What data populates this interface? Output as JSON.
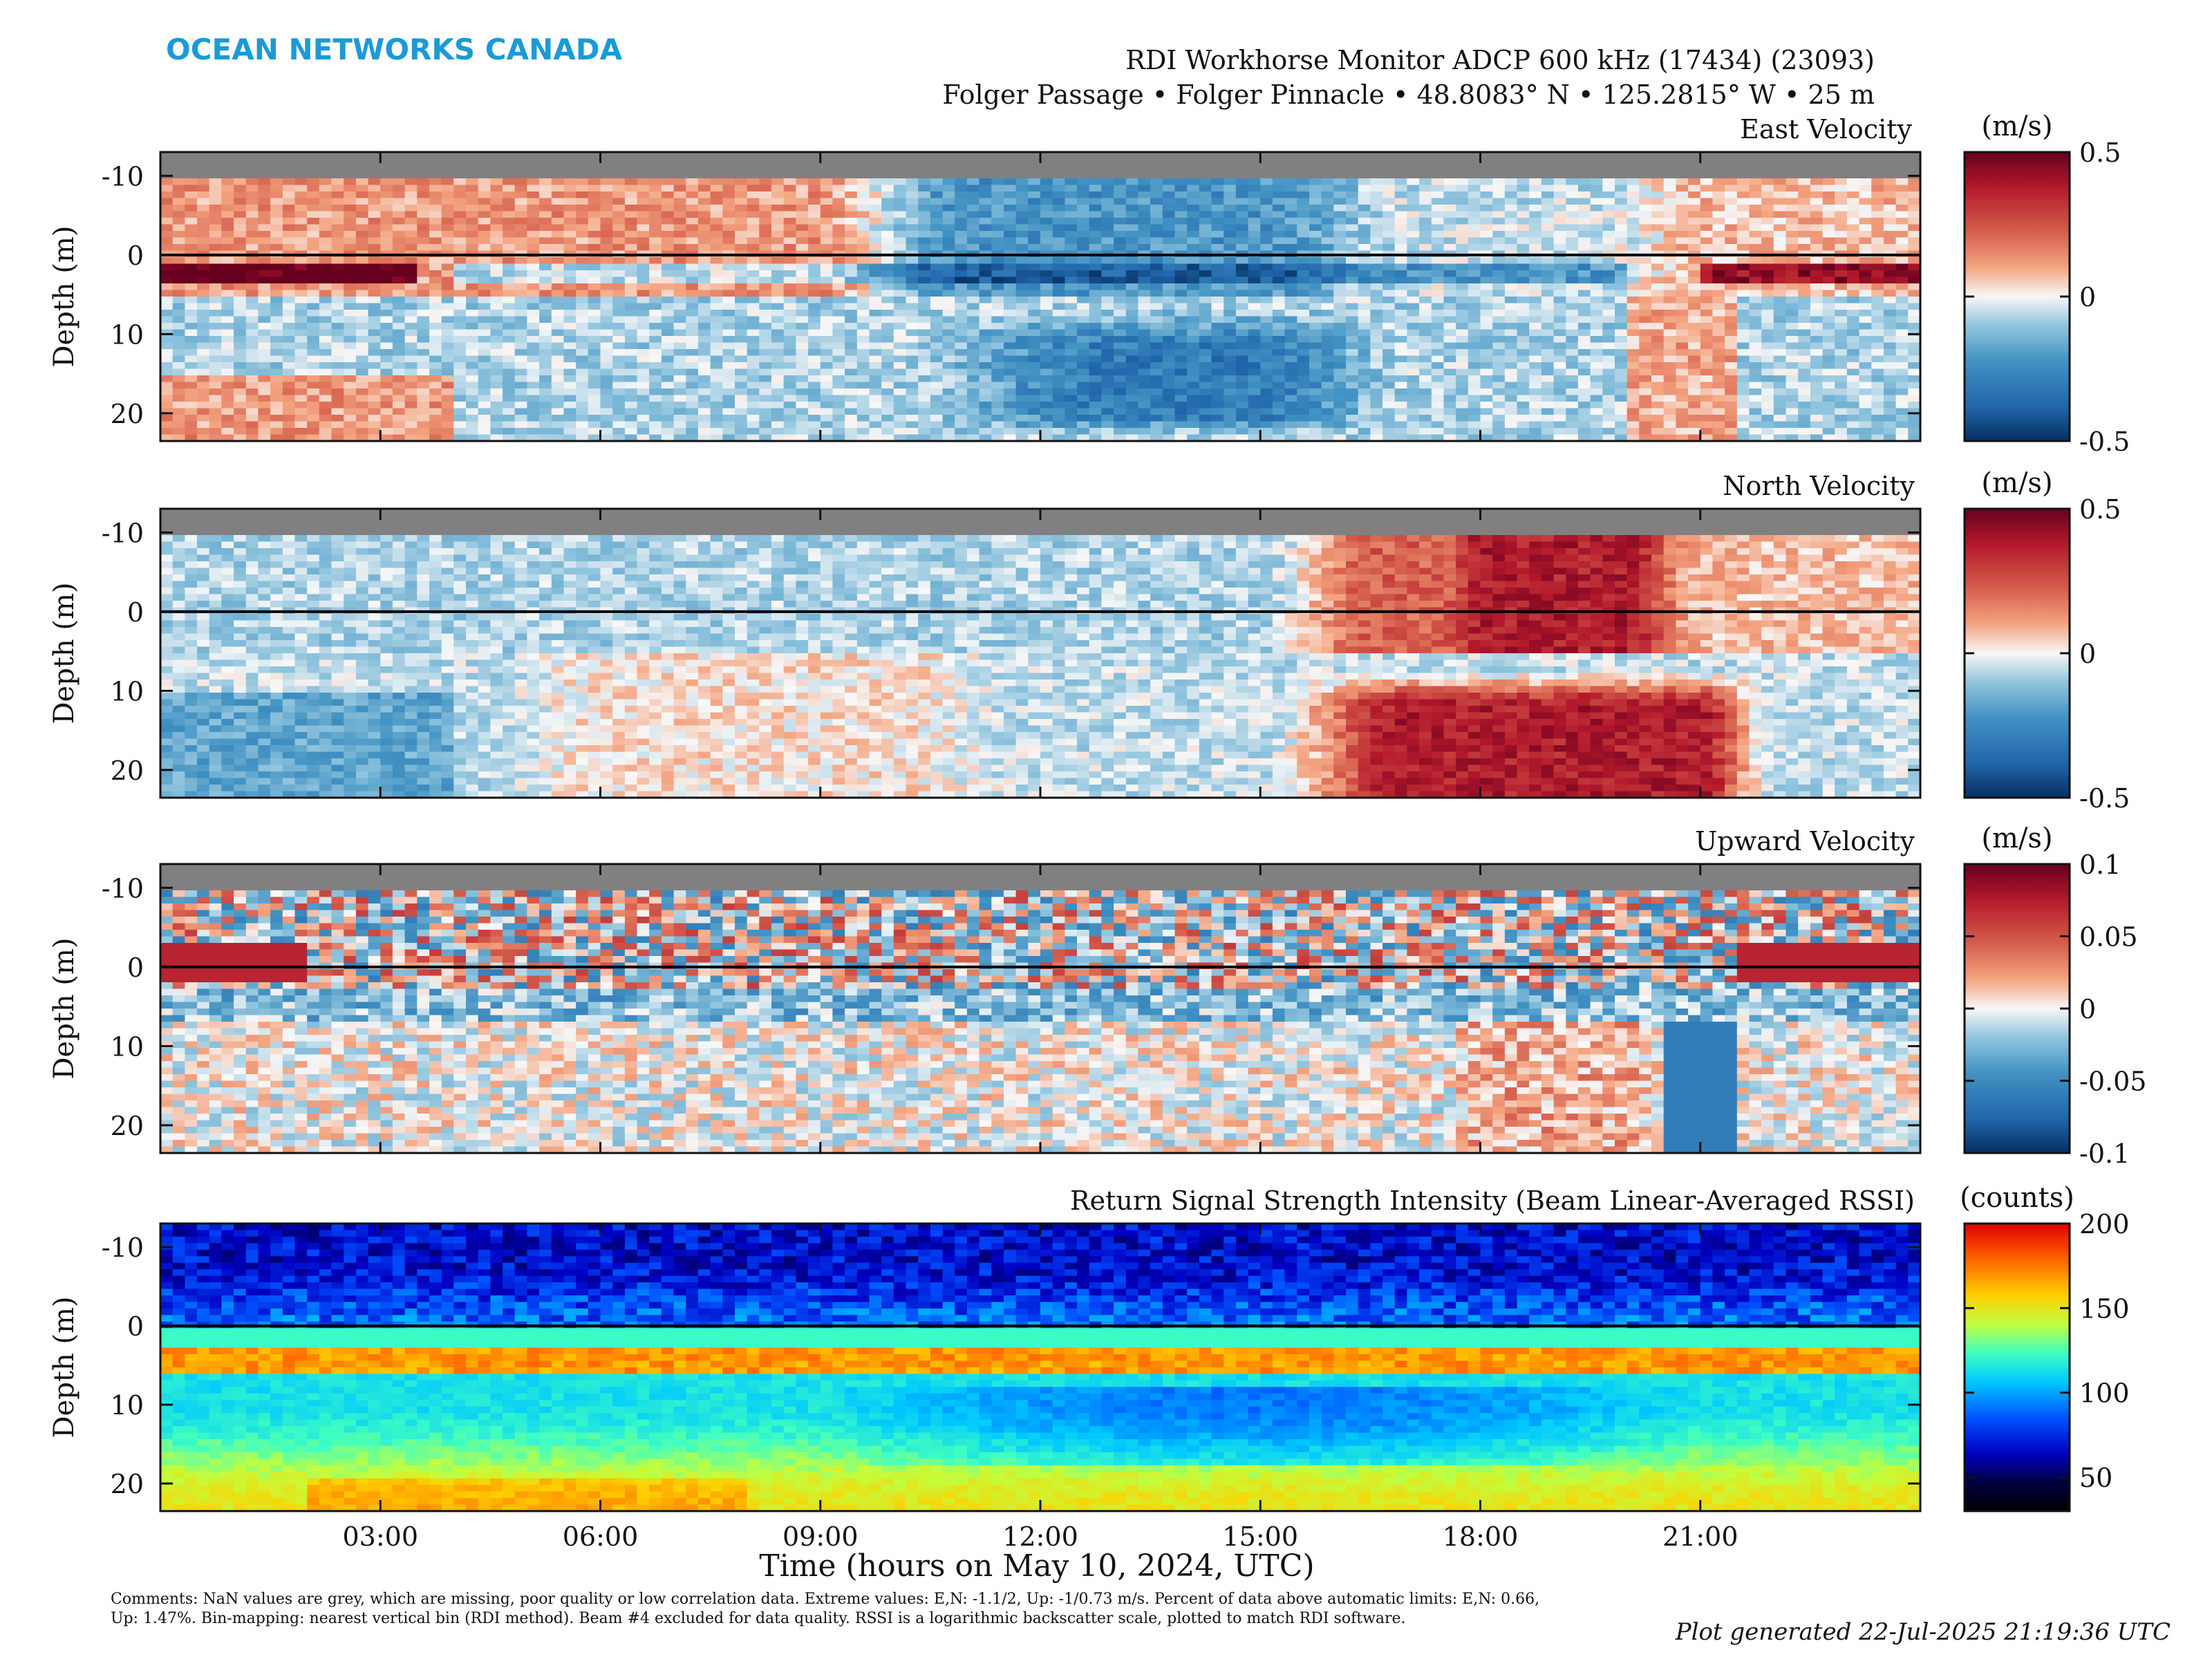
{
  "brand": "OCEAN NETWORKS CANADA",
  "header": {
    "title": "RDI Workhorse Monitor ADCP 600 kHz (17434) (23093)",
    "subtitle": "Folger Passage • Folger Pinnacle • 48.8083° N • 125.2815° W • 25 m"
  },
  "colors": {
    "brand": "#1a9ad6",
    "nan_grey": "#808080"
  },
  "x_axis": {
    "label": "Time (hours on May 10, 2024, UTC)",
    "range_hours": [
      0,
      24
    ],
    "ticks": [
      {
        "hour": 3,
        "label": "03:00"
      },
      {
        "hour": 6,
        "label": "06:00"
      },
      {
        "hour": 9,
        "label": "09:00"
      },
      {
        "hour": 12,
        "label": "12:00"
      },
      {
        "hour": 15,
        "label": "15:00"
      },
      {
        "hour": 18,
        "label": "18:00"
      },
      {
        "hour": 21,
        "label": "21:00"
      }
    ]
  },
  "y_axis": {
    "label": "Depth (m)",
    "range_m": [
      -13,
      23.5
    ],
    "ticks": [
      {
        "value": -10,
        "label": "-10"
      },
      {
        "value": 0,
        "label": "0"
      },
      {
        "value": 10,
        "label": "10"
      },
      {
        "value": 20,
        "label": "20"
      }
    ],
    "reference_line_depth_m": 0
  },
  "chart_data": [
    {
      "type": "heatmap",
      "title": "East Velocity",
      "colorbar": {
        "unit": "(m/s)",
        "colormap": "red-white-blue",
        "range": [
          -0.5,
          0.5
        ],
        "ticks": [
          {
            "value": 0.5,
            "label": "0.5"
          },
          {
            "value": 0,
            "label": "0"
          },
          {
            "value": -0.5,
            "label": "-0.5"
          }
        ]
      },
      "nan_band_depth_m": [
        -13,
        -10
      ],
      "surface_mixed_band_m": [
        -10,
        5
      ]
    },
    {
      "type": "heatmap",
      "title": "North Velocity",
      "colorbar": {
        "unit": "(m/s)",
        "colormap": "red-white-blue",
        "range": [
          -0.5,
          0.5
        ],
        "ticks": [
          {
            "value": 0.5,
            "label": "0.5"
          },
          {
            "value": 0,
            "label": "0"
          },
          {
            "value": -0.5,
            "label": "-0.5"
          }
        ]
      },
      "nan_band_depth_m": [
        -13,
        -10
      ],
      "surface_mixed_band_m": [
        -10,
        5
      ]
    },
    {
      "type": "heatmap",
      "title": "Upward Velocity",
      "colorbar": {
        "unit": "(m/s)",
        "colormap": "red-white-blue",
        "range": [
          -0.1,
          0.1
        ],
        "ticks": [
          {
            "value": 0.1,
            "label": "0.1"
          },
          {
            "value": 0.05,
            "label": "0.05"
          },
          {
            "value": 0,
            "label": "0"
          },
          {
            "value": -0.05,
            "label": "-0.05"
          },
          {
            "value": -0.1,
            "label": "-0.1"
          }
        ]
      },
      "nan_band_depth_m": [
        -13,
        -10
      ],
      "surface_mixed_band_m": [
        -10,
        5
      ]
    },
    {
      "type": "heatmap",
      "title": "Return Signal Strength Intensity (Beam Linear-Averaged RSSI)",
      "colorbar": {
        "unit": "(counts)",
        "colormap": "jet",
        "range": [
          30,
          200
        ],
        "ticks": [
          {
            "value": 200,
            "label": "200"
          },
          {
            "value": 150,
            "label": "150"
          },
          {
            "value": 100,
            "label": "100"
          },
          {
            "value": 50,
            "label": "50"
          }
        ]
      },
      "surface_reflection_band_m": [
        2.5,
        6
      ]
    }
  ],
  "comments": "Comments: NaN values are grey, which are missing, poor quality or low correlation data. Extreme values: E,N: -1.1/2, Up: -1/0.73 m/s. Percent of data above automatic limits: E,N: 0.66, Up: 1.47%. Bin-mapping: nearest vertical bin (RDI method). Beam #4 excluded for data quality. RSSI is a logarithmic backscatter scale, plotted to match RDI software.",
  "generated": "Plot generated 22-Jul-2025 21:19:36 UTC"
}
